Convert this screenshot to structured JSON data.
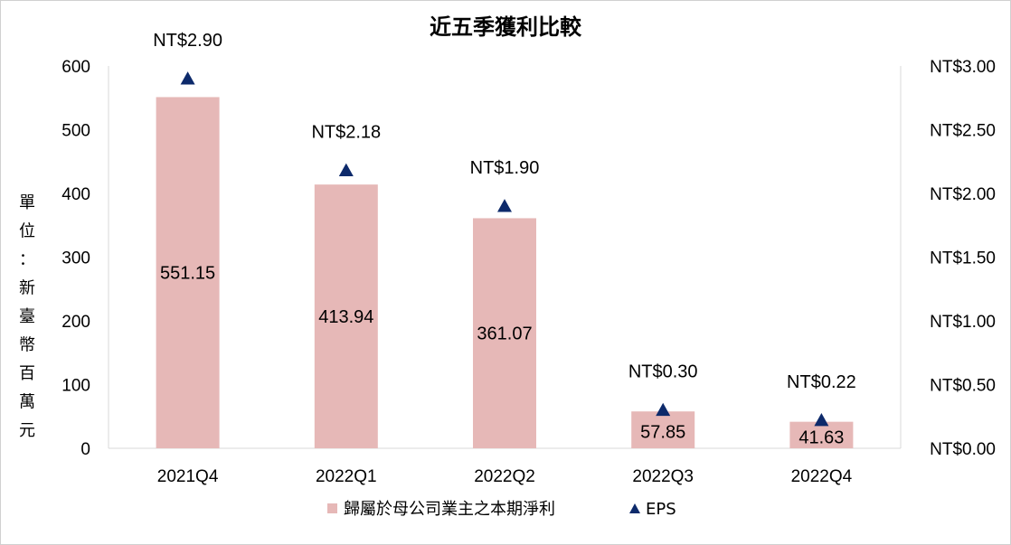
{
  "chart_data": {
    "type": "bar",
    "title": "近五季獲利比較",
    "categories": [
      "2021Q4",
      "2022Q1",
      "2022Q2",
      "2022Q3",
      "2022Q4"
    ],
    "series": [
      {
        "name": "歸屬於母公司業主之本期淨利",
        "type": "bar",
        "axis": "left",
        "color": "#e6b8b7",
        "values": [
          551.15,
          413.94,
          361.07,
          57.85,
          41.63
        ],
        "labels": [
          "551.15",
          "413.94",
          "361.07",
          "57.85",
          "41.63"
        ]
      },
      {
        "name": "EPS",
        "type": "marker",
        "marker": "triangle",
        "axis": "right",
        "color": "#0d2a6b",
        "values": [
          2.9,
          2.18,
          1.9,
          0.3,
          0.22
        ],
        "labels": [
          "NT$2.90",
          "NT$2.18",
          "NT$1.90",
          "NT$0.30",
          "NT$0.22"
        ]
      }
    ],
    "ylabel": "單位：新臺幣百萬元",
    "ylim": [
      0,
      600
    ],
    "y_ticks": [
      "0",
      "100",
      "200",
      "300",
      "400",
      "500",
      "600"
    ],
    "y2lim": [
      0,
      3.0
    ],
    "y2_ticks": [
      "NT$0.00",
      "NT$0.50",
      "NT$1.00",
      "NT$1.50",
      "NT$2.00",
      "NT$2.50",
      "NT$3.00"
    ],
    "grid": false,
    "legend_position": "bottom"
  }
}
